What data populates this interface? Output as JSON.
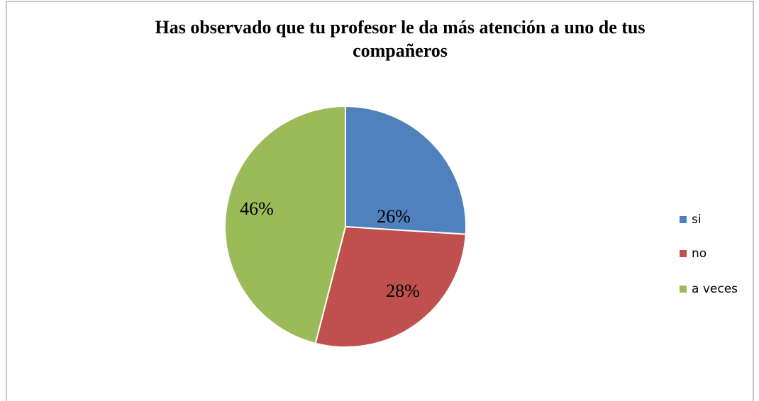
{
  "chart_data": {
    "type": "pie",
    "title": "Has observado que tu profesor le da más atención a uno de tus compañeros",
    "categories": [
      "si",
      "no",
      "a veces"
    ],
    "values": [
      26,
      28,
      46
    ],
    "value_labels": [
      "26%",
      "28%",
      "46%"
    ],
    "colors": [
      "#4f81bd",
      "#c0504d",
      "#9bbb59"
    ],
    "legend": "right"
  }
}
